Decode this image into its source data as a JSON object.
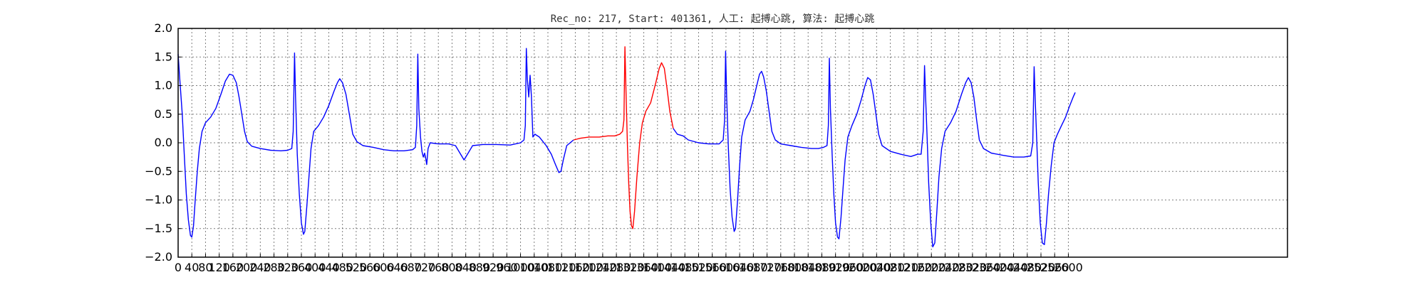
{
  "chart_data": {
    "type": "line",
    "title": "Rec_no: 217, Start: 401361, 人工: 起搏心跳, 算法: 起搏心跳",
    "xlabel": "",
    "ylabel": "",
    "xlim": [
      0,
      3240
    ],
    "ylim": [
      -2.0,
      2.0
    ],
    "grid": true,
    "x_ticks": [
      0,
      40,
      80,
      120,
      160,
      200,
      240,
      280,
      320,
      360,
      400,
      440,
      480,
      520,
      560,
      600,
      640,
      680,
      720,
      760,
      800,
      840,
      880,
      920,
      960,
      1000,
      1040,
      1080,
      1120,
      1160,
      1200,
      1240,
      1280,
      1320,
      1360,
      1400,
      1440,
      1480,
      1520,
      1560,
      1600,
      1640,
      1680,
      1720,
      1760,
      1800,
      1840,
      1880,
      1920,
      1960,
      2000,
      2040,
      2080,
      2120,
      2160,
      2200,
      2240,
      2280,
      2320,
      2360,
      2400,
      2440,
      2480,
      2520,
      2560,
      2600
    ],
    "y_ticks": [
      2.0,
      1.5,
      1.0,
      0.5,
      0.0,
      -0.5,
      -1.0,
      -1.5,
      -2.0
    ],
    "y_tick_labels": [
      "2.0",
      "1.5",
      "1.0",
      "0.5",
      "0.0",
      "−0.5",
      "−1.0",
      "−1.5",
      "−2.0"
    ],
    "series": [
      {
        "color": "#0000ff",
        "points": [
          [
            0,
            1.55
          ],
          [
            5,
            1.1
          ],
          [
            12,
            0.5
          ],
          [
            18,
            -0.2
          ],
          [
            24,
            -0.9
          ],
          [
            30,
            -1.35
          ],
          [
            36,
            -1.62
          ],
          [
            40,
            -1.65
          ],
          [
            45,
            -1.45
          ],
          [
            50,
            -1.0
          ],
          [
            56,
            -0.5
          ],
          [
            62,
            -0.1
          ],
          [
            70,
            0.2
          ],
          [
            80,
            0.35
          ],
          [
            95,
            0.45
          ],
          [
            110,
            0.6
          ],
          [
            125,
            0.85
          ],
          [
            138,
            1.08
          ],
          [
            150,
            1.2
          ],
          [
            160,
            1.18
          ],
          [
            170,
            1.05
          ],
          [
            178,
            0.8
          ],
          [
            186,
            0.5
          ],
          [
            194,
            0.2
          ],
          [
            202,
            0.02
          ],
          [
            215,
            -0.06
          ],
          [
            240,
            -0.1
          ],
          [
            270,
            -0.13
          ],
          [
            300,
            -0.14
          ],
          [
            320,
            -0.13
          ],
          [
            332,
            -0.1
          ],
          [
            336,
            0.2
          ],
          [
            340,
            1.57
          ],
          [
            343,
            0.8
          ],
          [
            348,
            -0.2
          ],
          [
            354,
            -0.9
          ],
          [
            360,
            -1.4
          ],
          [
            366,
            -1.6
          ],
          [
            370,
            -1.55
          ],
          [
            376,
            -1.1
          ],
          [
            382,
            -0.6
          ],
          [
            388,
            -0.1
          ],
          [
            396,
            0.2
          ],
          [
            410,
            0.3
          ],
          [
            425,
            0.45
          ],
          [
            440,
            0.65
          ],
          [
            455,
            0.9
          ],
          [
            465,
            1.05
          ],
          [
            472,
            1.12
          ],
          [
            480,
            1.05
          ],
          [
            490,
            0.85
          ],
          [
            500,
            0.5
          ],
          [
            510,
            0.15
          ],
          [
            522,
            0.02
          ],
          [
            540,
            -0.05
          ],
          [
            570,
            -0.08
          ],
          [
            600,
            -0.12
          ],
          [
            630,
            -0.14
          ],
          [
            660,
            -0.14
          ],
          [
            685,
            -0.12
          ],
          [
            693,
            -0.08
          ],
          [
            697,
            0.3
          ],
          [
            700,
            1.55
          ],
          [
            703,
            0.6
          ],
          [
            708,
            0.1
          ],
          [
            712,
            -0.15
          ],
          [
            716,
            -0.25
          ],
          [
            720,
            -0.18
          ],
          [
            724,
            -0.3
          ],
          [
            726,
            -0.38
          ],
          [
            730,
            -0.1
          ],
          [
            736,
            0.0
          ],
          [
            760,
            -0.02
          ],
          [
            790,
            -0.02
          ],
          [
            810,
            -0.05
          ],
          [
            825,
            -0.2
          ],
          [
            835,
            -0.3
          ],
          [
            845,
            -0.2
          ],
          [
            860,
            -0.05
          ],
          [
            890,
            -0.03
          ],
          [
            930,
            -0.03
          ],
          [
            970,
            -0.04
          ],
          [
            1000,
            0.0
          ],
          [
            1010,
            0.05
          ],
          [
            1014,
            0.3
          ],
          [
            1017,
            1.65
          ],
          [
            1020,
            1.1
          ],
          [
            1024,
            0.8
          ],
          [
            1028,
            1.18
          ],
          [
            1032,
            0.8
          ],
          [
            1036,
            0.1
          ],
          [
            1042,
            0.15
          ],
          [
            1055,
            0.1
          ],
          [
            1075,
            -0.05
          ],
          [
            1090,
            -0.2
          ],
          [
            1102,
            -0.38
          ],
          [
            1112,
            -0.52
          ],
          [
            1118,
            -0.5
          ],
          [
            1125,
            -0.3
          ],
          [
            1135,
            -0.05
          ],
          [
            1155,
            0.05
          ]
        ]
      },
      {
        "color": "#ff0000",
        "points": [
          [
            1155,
            0.05
          ],
          [
            1175,
            0.08
          ],
          [
            1200,
            0.1
          ],
          [
            1230,
            0.1
          ],
          [
            1255,
            0.12
          ],
          [
            1275,
            0.12
          ],
          [
            1290,
            0.15
          ],
          [
            1298,
            0.2
          ],
          [
            1302,
            0.4
          ],
          [
            1305,
            1.68
          ],
          [
            1308,
            0.9
          ],
          [
            1312,
            0.0
          ],
          [
            1316,
            -0.7
          ],
          [
            1320,
            -1.2
          ],
          [
            1324,
            -1.45
          ],
          [
            1328,
            -1.5
          ],
          [
            1333,
            -1.2
          ],
          [
            1340,
            -0.6
          ],
          [
            1348,
            0.0
          ],
          [
            1356,
            0.35
          ],
          [
            1366,
            0.55
          ],
          [
            1380,
            0.7
          ],
          [
            1395,
            1.05
          ],
          [
            1405,
            1.3
          ],
          [
            1412,
            1.4
          ],
          [
            1420,
            1.3
          ],
          [
            1428,
            0.95
          ],
          [
            1436,
            0.55
          ],
          [
            1446,
            0.25
          ]
        ]
      },
      {
        "color": "#0000ff",
        "points": [
          [
            1446,
            0.25
          ],
          [
            1458,
            0.15
          ],
          [
            1475,
            0.12
          ],
          [
            1490,
            0.05
          ],
          [
            1520,
            0.0
          ],
          [
            1550,
            -0.02
          ],
          [
            1580,
            -0.02
          ],
          [
            1592,
            0.05
          ],
          [
            1596,
            0.4
          ],
          [
            1599,
            1.6
          ],
          [
            1602,
            0.8
          ],
          [
            1607,
            -0.1
          ],
          [
            1612,
            -0.8
          ],
          [
            1618,
            -1.3
          ],
          [
            1624,
            -1.55
          ],
          [
            1628,
            -1.5
          ],
          [
            1634,
            -1.0
          ],
          [
            1640,
            -0.4
          ],
          [
            1646,
            0.1
          ],
          [
            1656,
            0.4
          ],
          [
            1670,
            0.55
          ],
          [
            1680,
            0.75
          ],
          [
            1690,
            1.0
          ],
          [
            1698,
            1.2
          ],
          [
            1704,
            1.25
          ],
          [
            1710,
            1.15
          ],
          [
            1718,
            0.9
          ],
          [
            1726,
            0.55
          ],
          [
            1734,
            0.2
          ],
          [
            1744,
            0.05
          ],
          [
            1760,
            -0.02
          ],
          [
            1790,
            -0.05
          ],
          [
            1820,
            -0.08
          ],
          [
            1850,
            -0.1
          ],
          [
            1870,
            -0.1
          ],
          [
            1885,
            -0.08
          ],
          [
            1895,
            -0.05
          ],
          [
            1899,
            0.3
          ],
          [
            1902,
            1.48
          ],
          [
            1905,
            0.6
          ],
          [
            1910,
            -0.2
          ],
          [
            1915,
            -0.9
          ],
          [
            1920,
            -1.4
          ],
          [
            1926,
            -1.65
          ],
          [
            1930,
            -1.68
          ],
          [
            1936,
            -1.3
          ],
          [
            1942,
            -0.8
          ],
          [
            1948,
            -0.3
          ],
          [
            1956,
            0.1
          ],
          [
            1968,
            0.3
          ],
          [
            1982,
            0.5
          ],
          [
            1995,
            0.75
          ],
          [
            2006,
            1.0
          ],
          [
            2014,
            1.14
          ],
          [
            2022,
            1.1
          ],
          [
            2030,
            0.85
          ],
          [
            2038,
            0.5
          ],
          [
            2046,
            0.15
          ],
          [
            2056,
            -0.05
          ],
          [
            2080,
            -0.15
          ],
          [
            2110,
            -0.2
          ],
          [
            2140,
            -0.24
          ],
          [
            2160,
            -0.2
          ],
          [
            2170,
            -0.2
          ],
          [
            2176,
            0.2
          ],
          [
            2180,
            1.35
          ],
          [
            2183,
            0.8
          ],
          [
            2188,
            0.0
          ],
          [
            2192,
            -0.7
          ],
          [
            2198,
            -1.4
          ],
          [
            2204,
            -1.82
          ],
          [
            2210,
            -1.75
          ],
          [
            2216,
            -1.2
          ],
          [
            2222,
            -0.6
          ],
          [
            2230,
            -0.1
          ],
          [
            2240,
            0.2
          ],
          [
            2256,
            0.35
          ],
          [
            2272,
            0.55
          ],
          [
            2288,
            0.85
          ],
          [
            2300,
            1.05
          ],
          [
            2308,
            1.14
          ],
          [
            2316,
            1.05
          ],
          [
            2324,
            0.8
          ],
          [
            2332,
            0.4
          ],
          [
            2340,
            0.05
          ],
          [
            2352,
            -0.1
          ],
          [
            2375,
            -0.18
          ],
          [
            2410,
            -0.22
          ],
          [
            2440,
            -0.25
          ],
          [
            2470,
            -0.25
          ],
          [
            2490,
            -0.23
          ],
          [
            2496,
            0.0
          ],
          [
            2500,
            1.33
          ],
          [
            2503,
            0.8
          ],
          [
            2508,
            0.0
          ],
          [
            2512,
            -0.7
          ],
          [
            2518,
            -1.4
          ],
          [
            2524,
            -1.75
          ],
          [
            2530,
            -1.78
          ],
          [
            2536,
            -1.4
          ],
          [
            2542,
            -0.9
          ],
          [
            2550,
            -0.4
          ],
          [
            2558,
            0.0
          ],
          [
            2568,
            0.15
          ],
          [
            2580,
            0.3
          ],
          [
            2592,
            0.45
          ],
          [
            2604,
            0.65
          ],
          [
            2614,
            0.8
          ],
          [
            2620,
            0.88
          ]
        ]
      }
    ]
  }
}
